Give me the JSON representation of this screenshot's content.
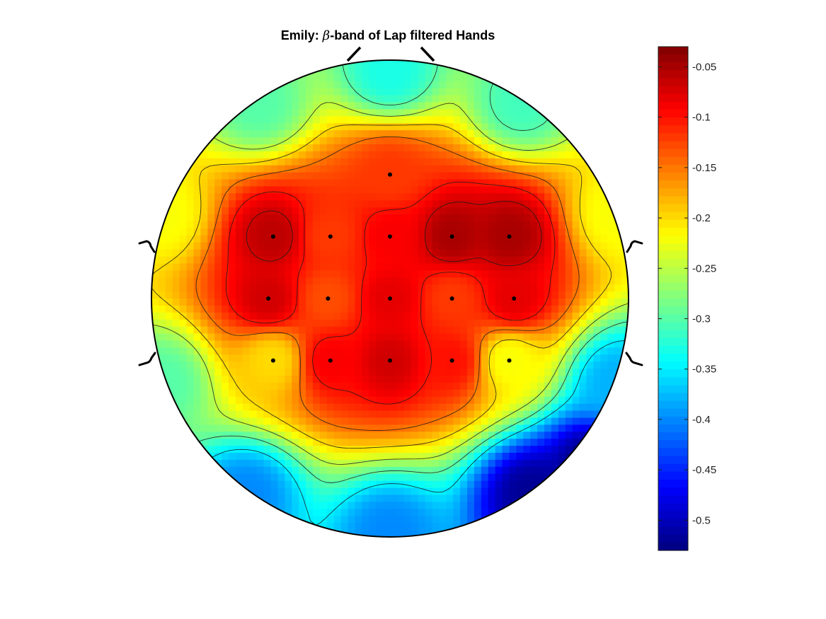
{
  "chart_data": {
    "type": "heatmap",
    "title": {
      "prefix": "Emily: ",
      "symbol": "β",
      "suffix": "-band of Lap filtered Hands"
    },
    "colormap": "jet",
    "clim": [
      -0.53,
      -0.03
    ],
    "colorbar": {
      "location": "right",
      "ticks": [
        -0.05,
        -0.1,
        -0.15,
        -0.2,
        -0.25,
        -0.3,
        -0.35,
        -0.4,
        -0.45,
        -0.5
      ],
      "tick_labels": [
        "-0.05",
        "-0.1",
        "-0.15",
        "-0.2",
        "-0.25",
        "-0.3",
        "-0.35",
        "-0.4",
        "-0.45",
        "-0.5"
      ]
    },
    "contour_levels": [
      -0.35,
      -0.3,
      -0.25,
      -0.2,
      -0.15,
      -0.1,
      -0.07
    ],
    "electrodes": [
      {
        "x": 0.0,
        "y": 0.52,
        "value": -0.12
      },
      {
        "x": -0.49,
        "y": 0.26,
        "value": -0.06
      },
      {
        "x": -0.25,
        "y": 0.26,
        "value": -0.12
      },
      {
        "x": 0.0,
        "y": 0.26,
        "value": -0.09
      },
      {
        "x": 0.26,
        "y": 0.26,
        "value": -0.05
      },
      {
        "x": 0.5,
        "y": 0.26,
        "value": -0.05
      },
      {
        "x": -0.51,
        "y": 0.0,
        "value": -0.07
      },
      {
        "x": -0.26,
        "y": 0.0,
        "value": -0.13
      },
      {
        "x": 0.0,
        "y": 0.0,
        "value": -0.08
      },
      {
        "x": 0.26,
        "y": 0.0,
        "value": -0.12
      },
      {
        "x": 0.52,
        "y": 0.0,
        "value": -0.08
      },
      {
        "x": -0.49,
        "y": -0.26,
        "value": -0.2
      },
      {
        "x": -0.25,
        "y": -0.26,
        "value": -0.09
      },
      {
        "x": 0.0,
        "y": -0.26,
        "value": -0.07
      },
      {
        "x": 0.26,
        "y": -0.26,
        "value": -0.1
      },
      {
        "x": 0.5,
        "y": -0.26,
        "value": -0.22
      },
      {
        "x": 0.0,
        "y": 0.95,
        "value": -0.33
      },
      {
        "x": 0.55,
        "y": 0.82,
        "value": -0.31
      },
      {
        "x": -0.55,
        "y": 0.82,
        "value": -0.3
      },
      {
        "x": 0.95,
        "y": 0.35,
        "value": -0.22
      },
      {
        "x": -0.95,
        "y": 0.35,
        "value": -0.22
      },
      {
        "x": -0.95,
        "y": -0.35,
        "value": -0.3
      },
      {
        "x": 0.95,
        "y": -0.35,
        "value": -0.38
      },
      {
        "x": -0.6,
        "y": -0.82,
        "value": -0.4
      },
      {
        "x": 0.6,
        "y": -0.82,
        "value": -0.52
      },
      {
        "x": 0.0,
        "y": -0.98,
        "value": -0.4
      },
      {
        "x": 0.85,
        "y": -0.7,
        "value": -0.53
      }
    ]
  }
}
